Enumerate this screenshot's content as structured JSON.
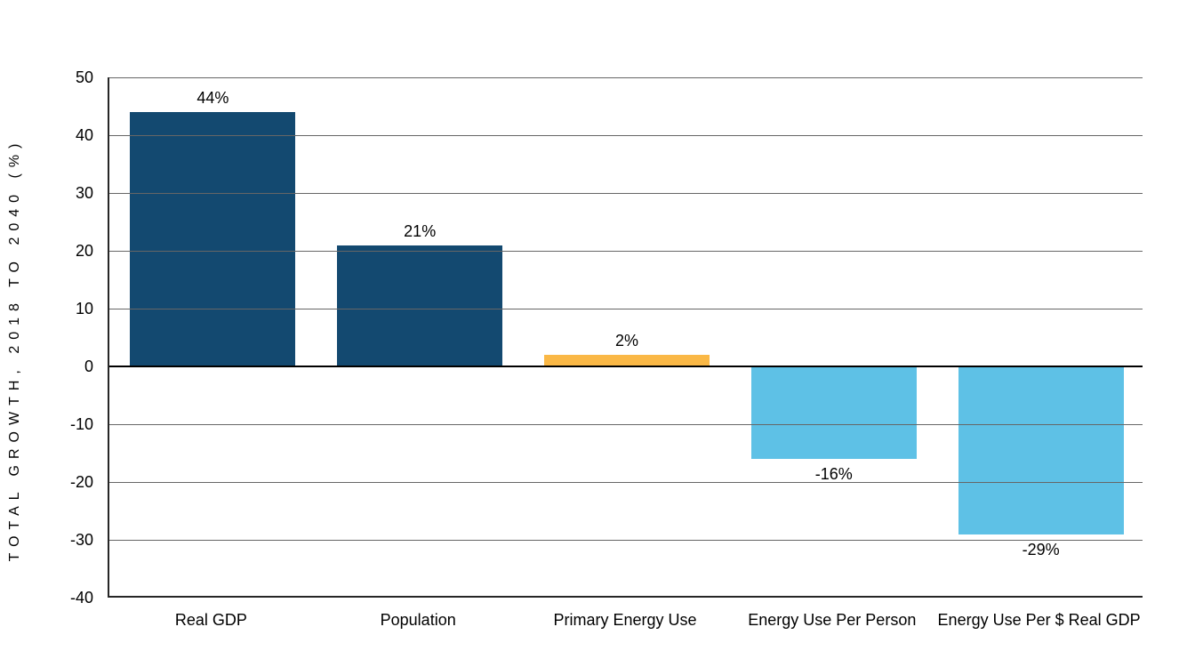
{
  "chart_data": {
    "type": "bar",
    "title": "",
    "xlabel": "",
    "ylabel": "TOTAL GROWTH, 2018 TO 2040 (%)",
    "categories": [
      "Real GDP",
      "Population",
      "Primary Energy Use",
      "Energy Use Per Person",
      "Energy Use Per $ Real GDP"
    ],
    "values": [
      44,
      21,
      2,
      -16,
      -29
    ],
    "value_labels": [
      "44%",
      "21%",
      "2%",
      "-16%",
      "-29%"
    ],
    "bar_colors": [
      "#134970",
      "#134970",
      "#FAB846",
      "#5EC1E6",
      "#5EC1E6"
    ],
    "ylim": [
      -40,
      50
    ],
    "yticks": [
      50,
      40,
      30,
      20,
      10,
      0,
      -10,
      -20,
      -30,
      -40
    ],
    "grid": true,
    "legend": false,
    "colors": {
      "dark_navy": "#134970",
      "orange": "#FAB846",
      "light_blue": "#5EC1E6",
      "gridline": "#666666",
      "axis": "#262626",
      "zero_line": "#000000",
      "background": "#ffffff"
    }
  }
}
